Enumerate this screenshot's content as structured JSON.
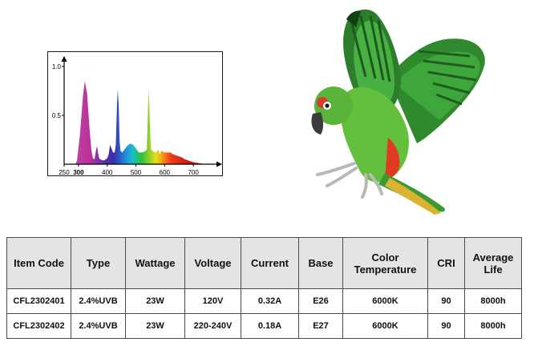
{
  "chart_data": {
    "type": "area",
    "title": "",
    "xlabel": "",
    "ylabel": "",
    "x_ticks": [
      {
        "value": 250,
        "label": "250",
        "bold": false
      },
      {
        "value": 300,
        "label": "300",
        "bold": true
      },
      {
        "value": 400,
        "label": "400",
        "bold": false
      },
      {
        "value": 500,
        "label": "500",
        "bold": false
      },
      {
        "value": 600,
        "label": "600",
        "bold": false
      },
      {
        "value": 700,
        "label": "700",
        "bold": false
      }
    ],
    "y_ticks": [
      {
        "value": 1.0,
        "label": "1.0"
      },
      {
        "value": 0.5,
        "label": "0.5"
      }
    ],
    "xlim": [
      250,
      775
    ],
    "ylim": [
      0,
      1.0
    ],
    "grid": false,
    "x": [
      250,
      290,
      295,
      305,
      315,
      322,
      330,
      338,
      345,
      350,
      356,
      362,
      365,
      369,
      372,
      376,
      382,
      390,
      400,
      405,
      410,
      415,
      420,
      426,
      430,
      434,
      437,
      440,
      443,
      446,
      452,
      460,
      470,
      480,
      490,
      500,
      505,
      510,
      520,
      530,
      538,
      542,
      545,
      548,
      552,
      560,
      570,
      578,
      582,
      585,
      588,
      592,
      600,
      610,
      620,
      630,
      640,
      650,
      660,
      670,
      680,
      700,
      720,
      745,
      760
    ],
    "y": [
      0,
      0,
      0.04,
      0.3,
      0.68,
      0.85,
      0.72,
      0.38,
      0.14,
      0.06,
      0.05,
      0.16,
      0.18,
      0.1,
      0.06,
      0.05,
      0.04,
      0.04,
      0.06,
      0.1,
      0.2,
      0.16,
      0.12,
      0.12,
      0.2,
      0.6,
      0.77,
      0.6,
      0.25,
      0.14,
      0.12,
      0.15,
      0.19,
      0.21,
      0.2,
      0.16,
      0.14,
      0.12,
      0.12,
      0.13,
      0.15,
      0.55,
      0.77,
      0.45,
      0.16,
      0.13,
      0.12,
      0.15,
      0.11,
      0.1,
      0.14,
      0.13,
      0.12,
      0.12,
      0.12,
      0.1,
      0.09,
      0.08,
      0.07,
      0.05,
      0.04,
      0.02,
      0.01,
      0.0,
      0.0
    ]
  },
  "table": {
    "headers": [
      {
        "lines": [
          "Item Code"
        ]
      },
      {
        "lines": [
          "Type"
        ]
      },
      {
        "lines": [
          "Wattage"
        ]
      },
      {
        "lines": [
          "Voltage"
        ]
      },
      {
        "lines": [
          "Current"
        ]
      },
      {
        "lines": [
          "Base"
        ]
      },
      {
        "lines": [
          "Color",
          "Temperature"
        ]
      },
      {
        "lines": [
          "CRI"
        ]
      },
      {
        "lines": [
          "Average",
          "Life"
        ]
      }
    ],
    "rows": [
      [
        "CFL2302401",
        "2.4%UVB",
        "23W",
        "120V",
        "0.32A",
        "E26",
        "6000K",
        "90",
        "8000h"
      ],
      [
        "CFL2302402",
        "2.4%UVB",
        "23W",
        "220-240V",
        "0.18A",
        "E27",
        "6000K",
        "90",
        "8000h"
      ]
    ]
  }
}
